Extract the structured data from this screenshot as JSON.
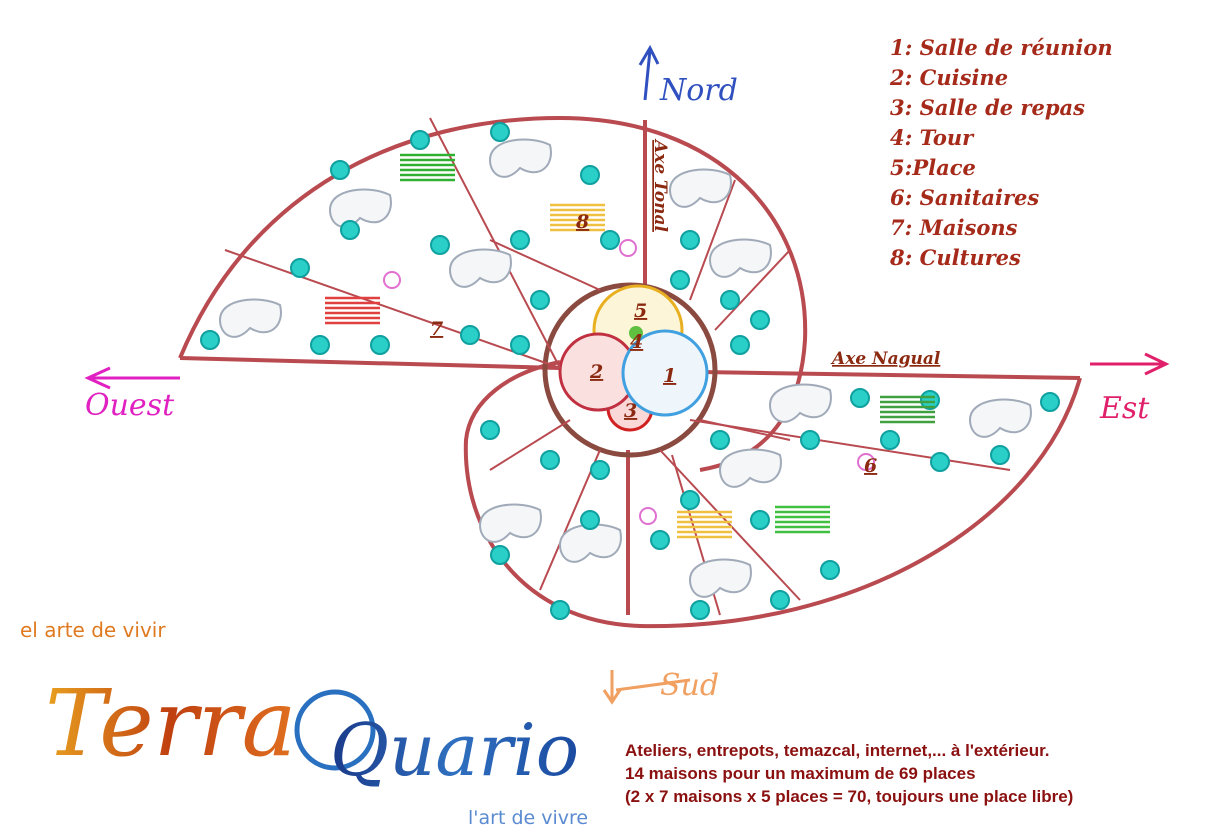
{
  "legend": [
    "1: Salle de réunion",
    "2: Cuisine",
    "3: Salle de repas",
    "4: Tour",
    "5:Place",
    "6: Sanitaires",
    "7: Maisons",
    "8: Cultures"
  ],
  "directions": {
    "north": "Nord",
    "west": "Ouest",
    "east": "Est",
    "south": "Sud"
  },
  "axes": {
    "tonal": "Axe Tonal",
    "nagual": "Axe Nagual"
  },
  "zone_labels": [
    "1",
    "2",
    "3",
    "4",
    "5",
    "6",
    "7",
    "8"
  ],
  "logo": {
    "top": "el arte de vivir",
    "name_1": "Terra",
    "name_2": "Quario",
    "bottom": "l'art de vivre"
  },
  "footer": [
    "Ateliers, entrepots, temazcal, internet,... à l'extérieur.",
    "14 maisons pour un maximum de 69 places",
    "(2 x 7 maisons x 5 places = 70, toujours une place libre)"
  ]
}
